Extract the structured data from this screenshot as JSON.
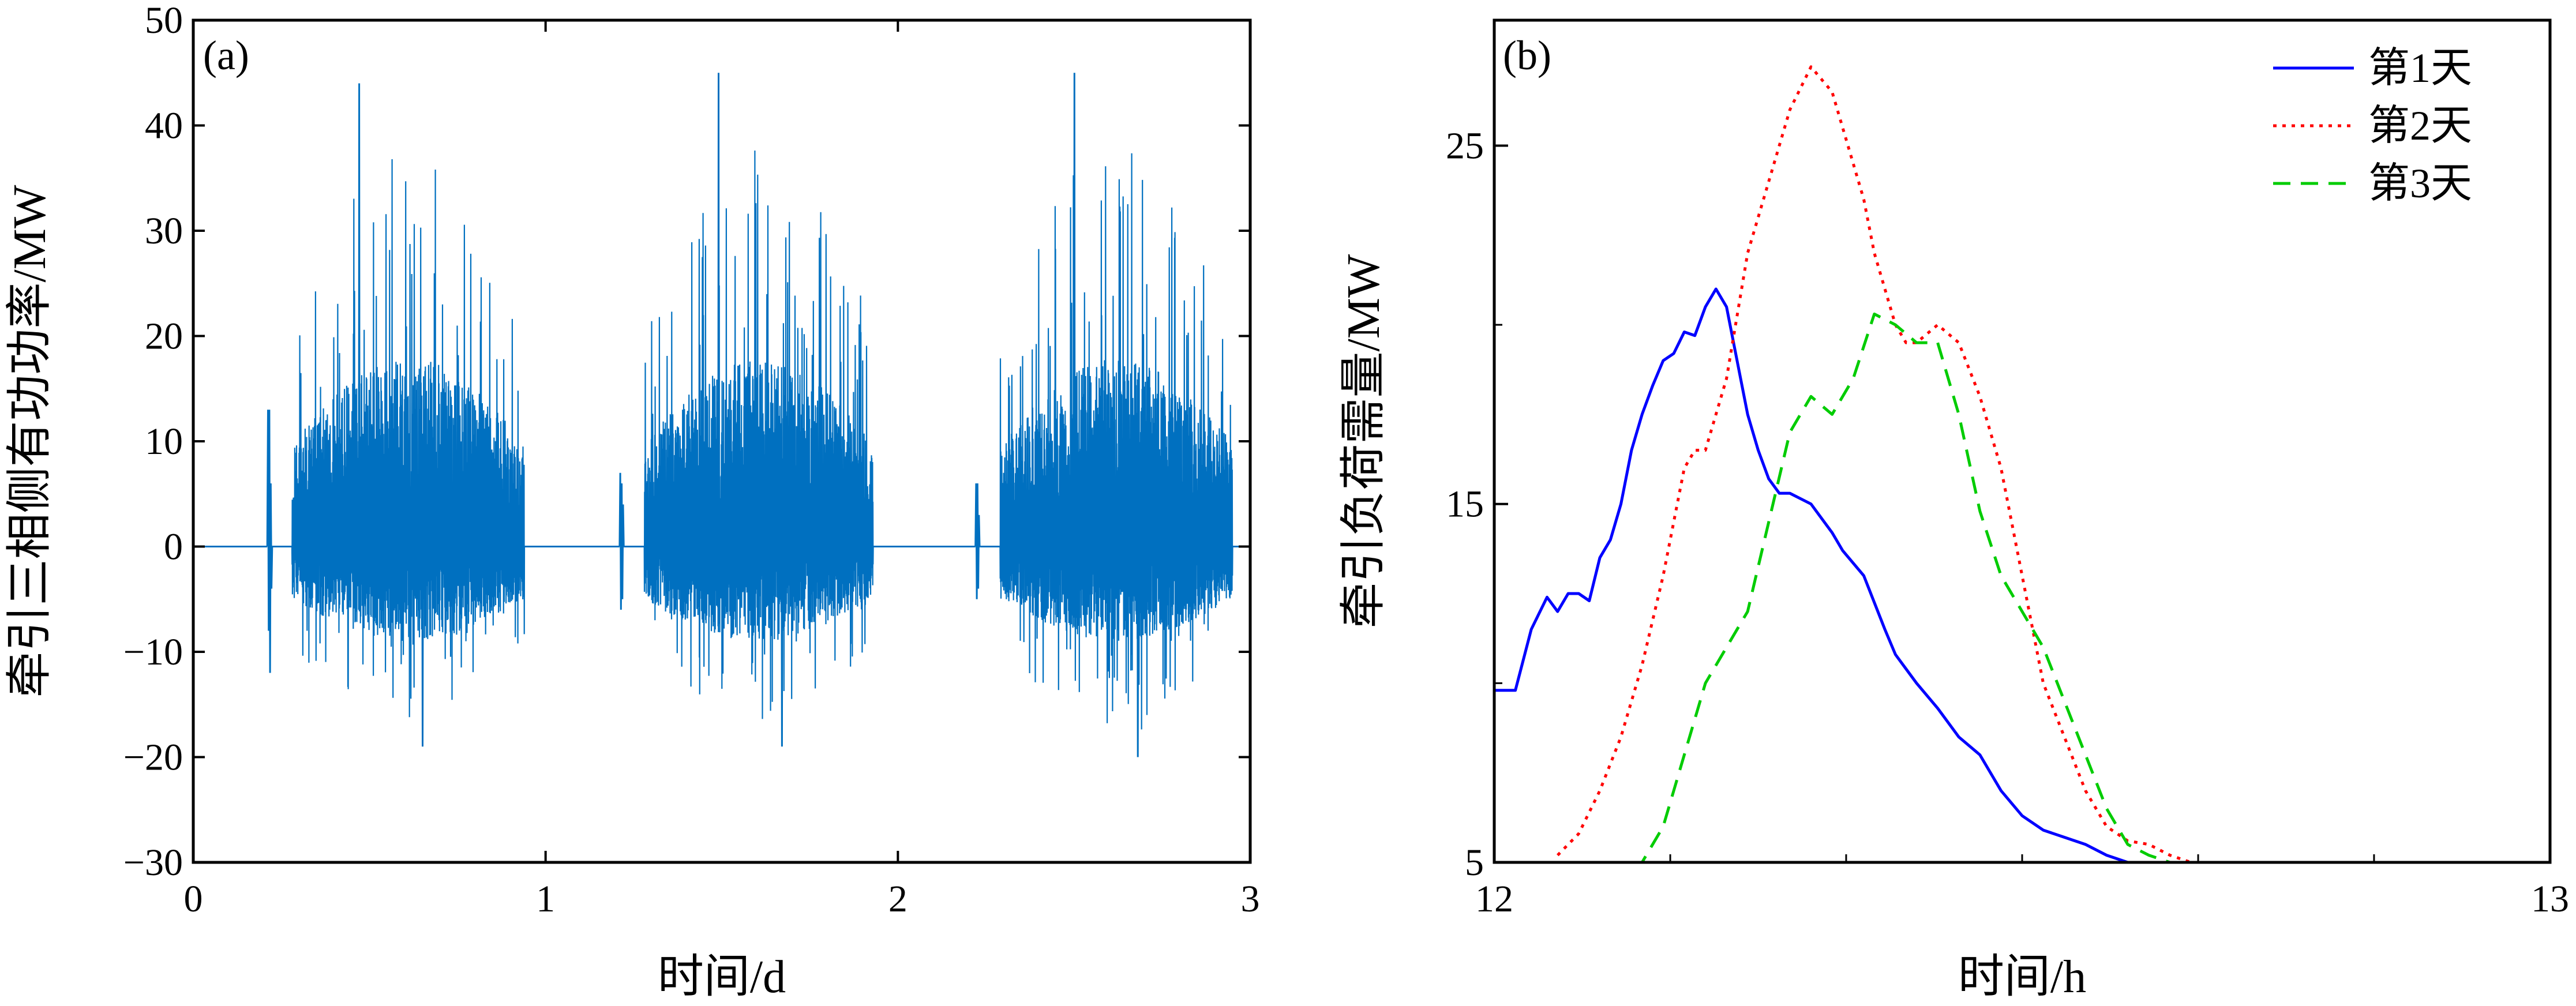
{
  "colors": {
    "panel_a_signal": "#0070c0",
    "day1": "#0000ff",
    "day2": "#ff0000",
    "day3": "#00cc00",
    "axes": "#000000"
  },
  "chart_data": [
    {
      "type": "line",
      "panel_label": "(a)",
      "xlabel": "时间/d",
      "ylabel": "牵引三相侧有功功率/MW",
      "xlim": [
        0,
        3
      ],
      "ylim": [
        -30,
        50
      ],
      "xticks": [
        0,
        1,
        2,
        3
      ],
      "yticks": [
        -30,
        -20,
        -10,
        0,
        10,
        20,
        30,
        40,
        50
      ],
      "xtick_labels": [
        "0",
        "1",
        "2",
        "3"
      ],
      "ytick_labels": [
        "−30",
        "−20",
        "−10",
        "0",
        "10",
        "20",
        "30",
        "40",
        "50"
      ],
      "grid": false,
      "series": [
        {
          "color": "#0070c0",
          "segments": [
            {
              "x": [
                0.0,
                0.21
              ],
              "y": [
                0,
                0
              ]
            },
            {
              "x": [
                0.21,
                0.212,
                0.214,
                0.216,
                0.218,
                0.22,
                0.222,
                0.224,
                0.226,
                0.228,
                0.23
              ],
              "y": [
                0,
                13,
                -8,
                13,
                -12,
                6,
                -4,
                0,
                0,
                0,
                0
              ]
            },
            {
              "x": [
                0.23,
                0.28
              ],
              "y": [
                0,
                0
              ]
            },
            {
              "x": [
                0.94,
                1.21
              ],
              "y": [
                0,
                0
              ]
            },
            {
              "x": [
                1.21,
                1.212,
                1.214,
                1.216,
                1.218,
                1.22,
                1.222,
                1.224
              ],
              "y": [
                0,
                7,
                -6,
                6,
                -5,
                4,
                0,
                0
              ]
            },
            {
              "x": [
                1.224,
                1.28
              ],
              "y": [
                0,
                0
              ]
            },
            {
              "x": [
                1.93,
                2.22
              ],
              "y": [
                0,
                0
              ]
            },
            {
              "x": [
                2.22,
                2.222,
                2.224,
                2.226,
                2.228,
                2.23,
                2.232,
                2.234
              ],
              "y": [
                0,
                6,
                -5,
                6,
                -4,
                3,
                0,
                0
              ]
            },
            {
              "x": [
                2.234,
                2.29
              ],
              "y": [
                0,
                0
              ]
            },
            {
              "x": [
                2.95,
                3.0
              ],
              "y": [
                0,
                0
              ]
            }
          ],
          "bursts": [
            {
              "x_start": 0.28,
              "x_end": 0.94,
              "pos_peak": 44,
              "neg_peak": -19,
              "peak_at": 0.47,
              "typical_pos": 12,
              "typical_neg": -6
            },
            {
              "x_start": 1.28,
              "x_end": 1.93,
              "pos_peak": 45,
              "neg_peak": -19,
              "peak_at": 1.49,
              "typical_pos": 12,
              "typical_neg": -6
            },
            {
              "x_start": 2.29,
              "x_end": 2.95,
              "pos_peak": 45,
              "neg_peak": -20,
              "peak_at": 2.5,
              "typical_pos": 12,
              "typical_neg": -6
            }
          ]
        }
      ]
    },
    {
      "type": "line",
      "panel_label": "(b)",
      "xlabel": "时间/h",
      "ylabel": "牵引负荷需量/MW",
      "xlim": [
        12,
        13
      ],
      "ylim": [
        5,
        28.5
      ],
      "xticks": [
        12,
        13
      ],
      "yticks": [
        5,
        15,
        25
      ],
      "xtick_labels": [
        "12",
        "13"
      ],
      "ytick_labels": [
        "5",
        "15",
        "25"
      ],
      "minor_xticks": [
        12.1667,
        12.3333,
        12.5,
        12.6667,
        12.8333
      ],
      "minor_yticks": [
        10,
        20
      ],
      "grid": false,
      "legend": {
        "position": "top-right",
        "entries": [
          "第1天",
          "第2天",
          "第3天"
        ]
      },
      "series": [
        {
          "name": "第1天",
          "color": "#0000ff",
          "dash": "solid",
          "x": [
            12.0,
            12.02,
            12.035,
            12.05,
            12.06,
            12.07,
            12.08,
            12.09,
            12.1,
            12.11,
            12.12,
            12.13,
            12.14,
            12.15,
            12.16,
            12.17,
            12.18,
            12.19,
            12.2,
            12.21,
            12.22,
            12.23,
            12.24,
            12.25,
            12.26,
            12.27,
            12.28,
            12.3,
            12.32,
            12.33,
            12.35,
            12.37,
            12.38,
            12.4,
            12.42,
            12.44,
            12.46,
            12.48,
            12.5,
            12.52,
            12.54,
            12.56,
            12.58,
            12.6,
            12.62,
            12.64,
            12.66,
            12.68,
            12.7
          ],
          "y": [
            9.8,
            9.8,
            11.5,
            12.4,
            12.0,
            12.5,
            12.5,
            12.3,
            13.5,
            14.0,
            15.0,
            16.5,
            17.5,
            18.3,
            19.0,
            19.2,
            19.8,
            19.7,
            20.5,
            21.0,
            20.5,
            19.0,
            17.5,
            16.5,
            15.7,
            15.3,
            15.3,
            15.0,
            14.2,
            13.7,
            13.0,
            11.5,
            10.8,
            10.0,
            9.3,
            8.5,
            8.0,
            7.0,
            6.3,
            5.9,
            5.7,
            5.5,
            5.2,
            5.0,
            4.8,
            4.6,
            4.4,
            4.2,
            4.0
          ]
        },
        {
          "name": "第2天",
          "color": "#ff0000",
          "dash": "dotted",
          "x": [
            12.06,
            12.08,
            12.1,
            12.12,
            12.14,
            12.16,
            12.18,
            12.19,
            12.2,
            12.22,
            12.24,
            12.26,
            12.28,
            12.3,
            12.32,
            12.34,
            12.35,
            12.36,
            12.38,
            12.39,
            12.4,
            12.42,
            12.44,
            12.46,
            12.48,
            12.49,
            12.5,
            12.51,
            12.52,
            12.54,
            12.56,
            12.58,
            12.6,
            12.62,
            12.64,
            12.66,
            12.68,
            12.7
          ],
          "y": [
            5.2,
            5.8,
            7.0,
            8.5,
            10.5,
            13.0,
            16.0,
            16.5,
            16.5,
            18.5,
            22.0,
            24.0,
            26.0,
            27.2,
            26.5,
            24.5,
            23.5,
            22.0,
            20.0,
            19.5,
            19.5,
            20.0,
            19.5,
            18.0,
            16.0,
            14.5,
            13.0,
            11.5,
            10.0,
            8.5,
            7.0,
            6.0,
            5.6,
            5.5,
            5.2,
            5.0,
            4.8,
            4.6
          ]
        },
        {
          "name": "第3天",
          "color": "#00cc00",
          "dash": "dashed",
          "x": [
            12.0,
            12.02,
            12.04,
            12.05,
            12.06,
            12.08,
            12.1,
            12.12,
            12.14,
            12.16,
            12.18,
            12.2,
            12.22,
            12.24,
            12.26,
            12.28,
            12.3,
            12.32,
            12.34,
            12.36,
            12.38,
            12.4,
            12.42,
            12.44,
            12.46,
            12.48,
            12.5,
            12.52,
            12.54,
            12.56,
            12.58,
            12.6,
            12.62,
            12.64,
            12.66,
            12.68,
            12.7
          ],
          "y": [
            5.0,
            5.0,
            5.0,
            5.0,
            4.9,
            4.9,
            4.9,
            4.9,
            5.0,
            6.0,
            8.0,
            10.0,
            11.0,
            12.0,
            14.5,
            17.0,
            18.0,
            17.5,
            18.5,
            20.3,
            20.0,
            19.5,
            19.5,
            17.5,
            14.8,
            13.0,
            12.0,
            11.0,
            9.5,
            8.0,
            6.5,
            5.5,
            5.2,
            5.0,
            4.8,
            4.6,
            4.4
          ]
        }
      ]
    }
  ]
}
